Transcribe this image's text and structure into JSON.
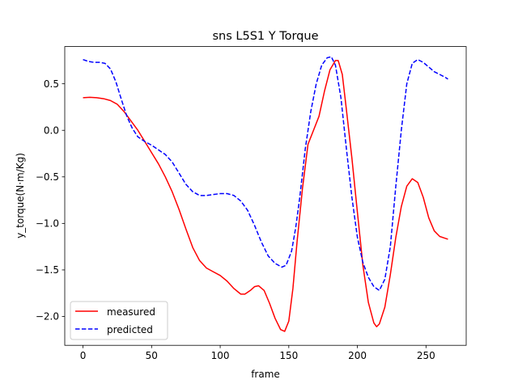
{
  "chart_data": {
    "type": "line",
    "title": "sns L5S1 Y Torque",
    "xlabel": "frame",
    "ylabel": "y_torque(N·m/Kg)",
    "xlim": [
      -13.3,
      279.3
    ],
    "ylim": [
      -2.31,
      0.9
    ],
    "xticks": [
      0,
      50,
      100,
      150,
      200,
      250
    ],
    "yticks": [
      -2.0,
      -1.5,
      -1.0,
      -0.5,
      0.0,
      0.5
    ],
    "ytick_labels": [
      "−2.0",
      "−1.5",
      "−1.0",
      "−0.5",
      "0.0",
      "0.5"
    ],
    "grid": false,
    "legend_position": "lower-left",
    "series": [
      {
        "name": "measured",
        "color": "#ff0000",
        "style": "solid",
        "points": [
          [
            0,
            0.35
          ],
          [
            5,
            0.355
          ],
          [
            10,
            0.35
          ],
          [
            15,
            0.34
          ],
          [
            20,
            0.32
          ],
          [
            25,
            0.28
          ],
          [
            30,
            0.2
          ],
          [
            35,
            0.1
          ],
          [
            40,
            0.0
          ],
          [
            45,
            -0.12
          ],
          [
            50,
            -0.24
          ],
          [
            55,
            -0.36
          ],
          [
            60,
            -0.5
          ],
          [
            65,
            -0.66
          ],
          [
            70,
            -0.85
          ],
          [
            75,
            -1.06
          ],
          [
            80,
            -1.26
          ],
          [
            85,
            -1.4
          ],
          [
            90,
            -1.48
          ],
          [
            95,
            -1.52
          ],
          [
            100,
            -1.56
          ],
          [
            105,
            -1.62
          ],
          [
            110,
            -1.7
          ],
          [
            115,
            -1.76
          ],
          [
            118,
            -1.76
          ],
          [
            122,
            -1.72
          ],
          [
            125,
            -1.68
          ],
          [
            128,
            -1.67
          ],
          [
            132,
            -1.72
          ],
          [
            136,
            -1.86
          ],
          [
            140,
            -2.02
          ],
          [
            144,
            -2.14
          ],
          [
            147,
            -2.16
          ],
          [
            150,
            -2.05
          ],
          [
            153,
            -1.7
          ],
          [
            156,
            -1.2
          ],
          [
            160,
            -0.62
          ],
          [
            164,
            -0.15
          ],
          [
            168,
            0.0
          ],
          [
            172,
            0.15
          ],
          [
            176,
            0.42
          ],
          [
            180,
            0.65
          ],
          [
            184,
            0.75
          ],
          [
            186,
            0.75
          ],
          [
            189,
            0.6
          ],
          [
            192,
            0.22
          ],
          [
            196,
            -0.3
          ],
          [
            200,
            -0.88
          ],
          [
            204,
            -1.45
          ],
          [
            208,
            -1.85
          ],
          [
            212,
            -2.07
          ],
          [
            214,
            -2.11
          ],
          [
            216,
            -2.08
          ],
          [
            220,
            -1.9
          ],
          [
            224,
            -1.55
          ],
          [
            228,
            -1.15
          ],
          [
            232,
            -0.82
          ],
          [
            236,
            -0.6
          ],
          [
            240,
            -0.52
          ],
          [
            244,
            -0.56
          ],
          [
            248,
            -0.72
          ],
          [
            252,
            -0.94
          ],
          [
            256,
            -1.08
          ],
          [
            260,
            -1.14
          ],
          [
            264,
            -1.16
          ],
          [
            266,
            -1.17
          ]
        ]
      },
      {
        "name": "predicted",
        "color": "#0000ff",
        "style": "dashed",
        "points": [
          [
            0,
            0.76
          ],
          [
            4,
            0.74
          ],
          [
            8,
            0.73
          ],
          [
            12,
            0.73
          ],
          [
            16,
            0.72
          ],
          [
            20,
            0.66
          ],
          [
            24,
            0.52
          ],
          [
            28,
            0.33
          ],
          [
            32,
            0.15
          ],
          [
            36,
            0.02
          ],
          [
            40,
            -0.07
          ],
          [
            45,
            -0.12
          ],
          [
            50,
            -0.16
          ],
          [
            55,
            -0.21
          ],
          [
            60,
            -0.26
          ],
          [
            65,
            -0.34
          ],
          [
            70,
            -0.46
          ],
          [
            75,
            -0.58
          ],
          [
            80,
            -0.66
          ],
          [
            85,
            -0.7
          ],
          [
            90,
            -0.7
          ],
          [
            95,
            -0.69
          ],
          [
            100,
            -0.68
          ],
          [
            105,
            -0.68
          ],
          [
            110,
            -0.7
          ],
          [
            115,
            -0.76
          ],
          [
            120,
            -0.86
          ],
          [
            125,
            -1.02
          ],
          [
            130,
            -1.2
          ],
          [
            135,
            -1.35
          ],
          [
            140,
            -1.43
          ],
          [
            145,
            -1.47
          ],
          [
            148,
            -1.45
          ],
          [
            152,
            -1.3
          ],
          [
            155,
            -1.05
          ],
          [
            158,
            -0.72
          ],
          [
            162,
            -0.2
          ],
          [
            166,
            0.2
          ],
          [
            170,
            0.5
          ],
          [
            174,
            0.7
          ],
          [
            178,
            0.78
          ],
          [
            181,
            0.79
          ],
          [
            184,
            0.7
          ],
          [
            188,
            0.35
          ],
          [
            192,
            -0.2
          ],
          [
            196,
            -0.72
          ],
          [
            200,
            -1.15
          ],
          [
            204,
            -1.42
          ],
          [
            208,
            -1.58
          ],
          [
            212,
            -1.68
          ],
          [
            216,
            -1.72
          ],
          [
            220,
            -1.6
          ],
          [
            224,
            -1.25
          ],
          [
            228,
            -0.6
          ],
          [
            232,
            0.0
          ],
          [
            236,
            0.5
          ],
          [
            240,
            0.72
          ],
          [
            244,
            0.76
          ],
          [
            248,
            0.73
          ],
          [
            252,
            0.68
          ],
          [
            256,
            0.63
          ],
          [
            260,
            0.6
          ],
          [
            264,
            0.57
          ],
          [
            266,
            0.55
          ]
        ]
      }
    ]
  }
}
